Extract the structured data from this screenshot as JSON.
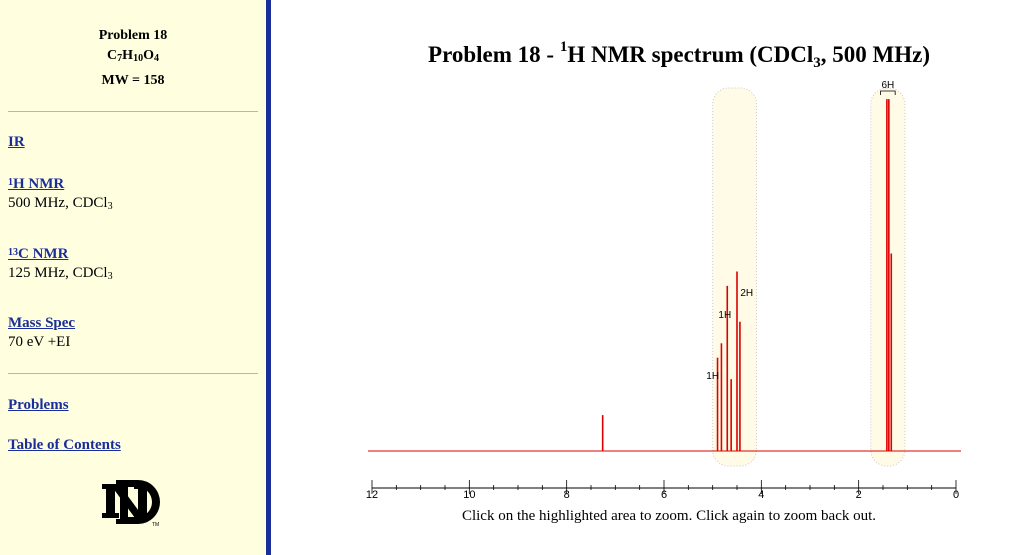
{
  "sidebar": {
    "problem_title": "Problem 18",
    "formula": {
      "c": "C",
      "c_n": "7",
      "h": "H",
      "h_n": "10",
      "o": "O",
      "o_n": "4"
    },
    "mw": "MW = 158",
    "links": {
      "ir": "IR",
      "hnmr_sup": "1",
      "hnmr": "H NMR",
      "hnmr_sub_prefix": "500 MHz, CDCl",
      "hnmr_sub_n": "3",
      "cnmr_sup": "13",
      "cnmr": "C NMR",
      "cnmr_sub_prefix": "125 MHz, CDCl",
      "cnmr_sub_n": "3",
      "mass": "Mass Spec",
      "mass_sub": "70 eV +EI",
      "problems": "Problems",
      "toc": "Table of Contents"
    },
    "logo_tm": "TM"
  },
  "title": {
    "prefix": "Problem 18 - ",
    "sup": "1",
    "main": "H NMR spectrum (CDCl",
    "sub": "3",
    "suffix": ", 500 MHz)"
  },
  "caption": "Click on the highlighted area to zoom. Click again to zoom back out.",
  "chart_data": {
    "type": "line",
    "xlabel": "",
    "ylabel": "",
    "x_reversed": true,
    "xlim": [
      12,
      0
    ],
    "xticks": [
      12,
      10,
      8,
      6,
      4,
      2,
      0
    ],
    "color": "#dd0000",
    "peaks": [
      {
        "ppm": 7.26,
        "height": 0.1
      },
      {
        "ppm": 4.9,
        "height": 0.26
      },
      {
        "ppm": 4.82,
        "height": 0.3
      },
      {
        "ppm": 4.7,
        "height": 0.46
      },
      {
        "ppm": 4.62,
        "height": 0.2
      },
      {
        "ppm": 4.5,
        "height": 0.5
      },
      {
        "ppm": 4.44,
        "height": 0.36
      },
      {
        "ppm": 1.42,
        "height": 0.98
      },
      {
        "ppm": 1.38,
        "height": 0.98
      },
      {
        "ppm": 1.33,
        "height": 0.55
      }
    ],
    "integrations": [
      {
        "label": "1H",
        "ppm": 5.0,
        "level": 0.19
      },
      {
        "label": "1H",
        "ppm": 4.75,
        "level": 0.36
      },
      {
        "label": "2H",
        "ppm": 4.3,
        "level": 0.42
      },
      {
        "label": "6H",
        "ppm": 1.4,
        "level": 1.0
      }
    ],
    "zoom_regions": [
      {
        "from": 5.0,
        "to": 4.1
      },
      {
        "from": 1.75,
        "to": 1.05
      }
    ]
  }
}
